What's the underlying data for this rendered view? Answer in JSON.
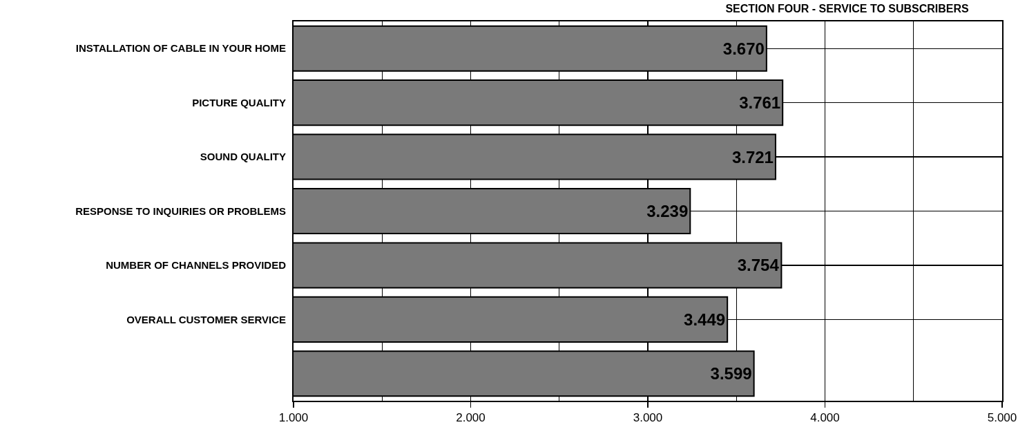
{
  "chart_data": {
    "type": "bar",
    "orientation": "horizontal",
    "title": "SECTION FOUR - SERVICE TO SUBSCRIBERS",
    "categories": [
      "INSTALLATION OF CABLE IN YOUR HOME",
      "PICTURE QUALITY",
      "SOUND QUALITY",
      "RESPONSE TO INQUIRIES OR PROBLEMS",
      "NUMBER OF CHANNELS PROVIDED",
      "OVERALL CUSTOMER SERVICE",
      null
    ],
    "values": [
      3.67,
      3.761,
      3.721,
      3.239,
      3.754,
      3.449,
      3.599
    ],
    "value_labels": [
      "3.670",
      "3.761",
      "3.721",
      "3.239",
      "3.754",
      "3.449",
      "3.599"
    ],
    "color": "#7a7a7a",
    "xlim": [
      1,
      5
    ],
    "xticks": [
      {
        "value": 1,
        "label": "1.000"
      },
      {
        "value": 1.5,
        "label": null
      },
      {
        "value": 2,
        "label": "2.000"
      },
      {
        "value": 2.5,
        "label": null
      },
      {
        "value": 3,
        "label": "3.000"
      },
      {
        "value": 3.5,
        "label": null
      },
      {
        "value": 4,
        "label": "4.000"
      },
      {
        "value": 4.5,
        "label": null
      },
      {
        "value": 5,
        "label": "5.000"
      }
    ],
    "grid": true
  }
}
